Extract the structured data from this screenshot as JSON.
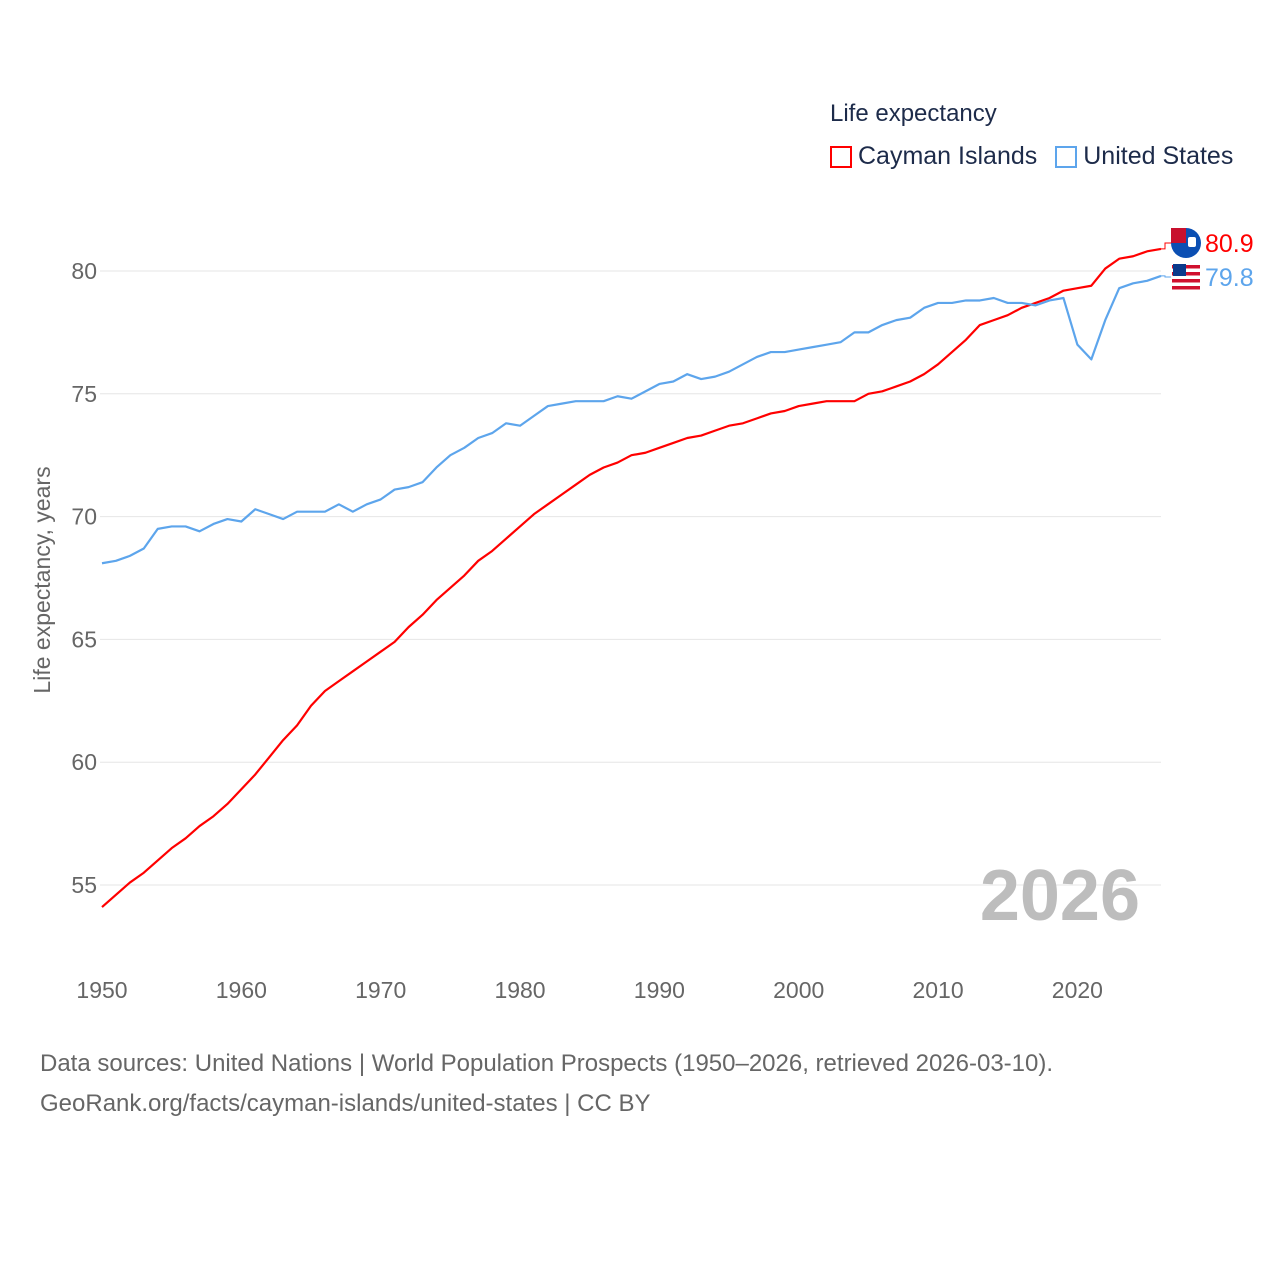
{
  "chart_data": {
    "type": "line",
    "title": "Life expectancy",
    "xlabel": "",
    "ylabel": "Life expectancy, years",
    "xlim": [
      1950,
      2026
    ],
    "ylim": [
      53,
      82
    ],
    "x_ticks": [
      "1950",
      "1960",
      "1970",
      "1980",
      "1990",
      "2000",
      "2010",
      "2020"
    ],
    "y_ticks": [
      "55",
      "60",
      "65",
      "70",
      "75",
      "80"
    ],
    "grid": true,
    "legend_position": "top-right",
    "year_label": "2026",
    "x": [
      1950,
      1951,
      1952,
      1953,
      1954,
      1955,
      1956,
      1957,
      1958,
      1959,
      1960,
      1961,
      1962,
      1963,
      1964,
      1965,
      1966,
      1967,
      1968,
      1969,
      1970,
      1971,
      1972,
      1973,
      1974,
      1975,
      1976,
      1977,
      1978,
      1979,
      1980,
      1981,
      1982,
      1983,
      1984,
      1985,
      1986,
      1987,
      1988,
      1989,
      1990,
      1991,
      1992,
      1993,
      1994,
      1995,
      1996,
      1997,
      1998,
      1999,
      2000,
      2001,
      2002,
      2003,
      2004,
      2005,
      2006,
      2007,
      2008,
      2009,
      2010,
      2011,
      2012,
      2013,
      2014,
      2015,
      2016,
      2017,
      2018,
      2019,
      2020,
      2021,
      2022,
      2023,
      2024,
      2025,
      2026
    ],
    "series": [
      {
        "name": "Cayman Islands",
        "color": "#ff0000",
        "end_label": "80.9",
        "flag": "cayman-islands-flag",
        "values": [
          54.1,
          54.6,
          55.1,
          55.5,
          56.0,
          56.5,
          56.9,
          57.4,
          57.8,
          58.3,
          58.9,
          59.5,
          60.2,
          60.9,
          61.5,
          62.3,
          62.9,
          63.3,
          63.7,
          64.1,
          64.5,
          64.9,
          65.5,
          66.0,
          66.6,
          67.1,
          67.6,
          68.2,
          68.6,
          69.1,
          69.6,
          70.1,
          70.5,
          70.9,
          71.3,
          71.7,
          72.0,
          72.2,
          72.5,
          72.6,
          72.8,
          73.0,
          73.2,
          73.3,
          73.5,
          73.7,
          73.8,
          74.0,
          74.2,
          74.3,
          74.5,
          74.6,
          74.7,
          74.7,
          74.7,
          75.0,
          75.1,
          75.3,
          75.5,
          75.8,
          76.2,
          76.7,
          77.2,
          77.8,
          78.0,
          78.2,
          78.5,
          78.7,
          78.9,
          79.2,
          79.3,
          79.4,
          80.1,
          80.5,
          80.6,
          80.8,
          80.9
        ]
      },
      {
        "name": "United States",
        "color": "#5da5ec",
        "end_label": "79.8",
        "flag": "united-states-flag",
        "values": [
          68.1,
          68.2,
          68.4,
          68.7,
          69.5,
          69.6,
          69.6,
          69.4,
          69.7,
          69.9,
          69.8,
          70.3,
          70.1,
          69.9,
          70.2,
          70.2,
          70.2,
          70.5,
          70.2,
          70.5,
          70.7,
          71.1,
          71.2,
          71.4,
          72.0,
          72.5,
          72.8,
          73.2,
          73.4,
          73.8,
          73.7,
          74.1,
          74.5,
          74.6,
          74.7,
          74.7,
          74.7,
          74.9,
          74.8,
          75.1,
          75.4,
          75.5,
          75.8,
          75.6,
          75.7,
          75.9,
          76.2,
          76.5,
          76.7,
          76.7,
          76.8,
          76.9,
          77.0,
          77.1,
          77.5,
          77.5,
          77.8,
          78.0,
          78.1,
          78.5,
          78.7,
          78.7,
          78.8,
          78.8,
          78.9,
          78.7,
          78.7,
          78.6,
          78.8,
          78.9,
          77.0,
          76.4,
          78.0,
          79.3,
          79.5,
          79.6,
          79.8
        ]
      }
    ]
  },
  "footer": {
    "line1": "Data sources: United Nations | World Population Prospects (1950–2026, retrieved 2026-03-10).",
    "line2": "GeoRank.org/facts/cayman-islands/united-states | CC BY"
  }
}
